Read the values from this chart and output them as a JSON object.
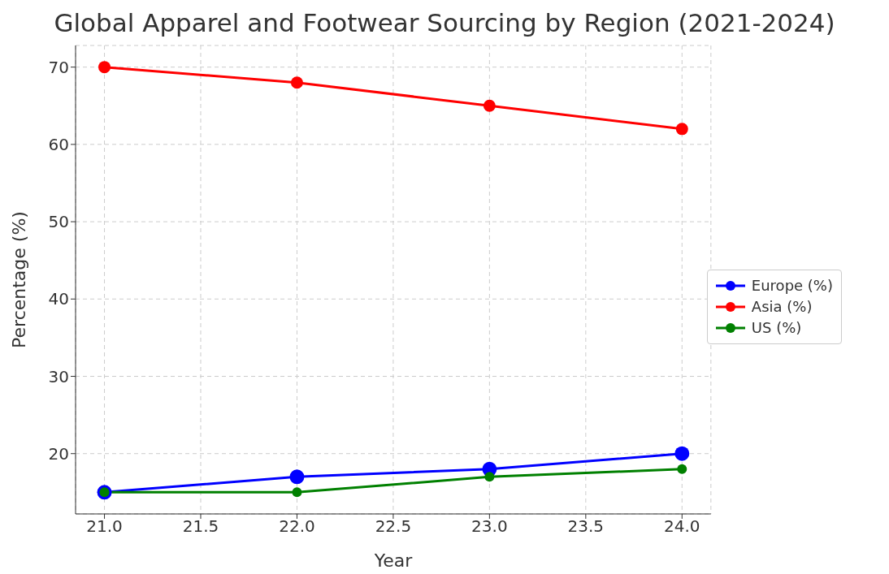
{
  "chart_data": {
    "type": "line",
    "title": "Global Apparel and Footwear Sourcing by Region (2021-2024)",
    "xlabel": "Year",
    "ylabel": "Percentage (%)",
    "x": [
      21,
      22,
      23,
      24
    ],
    "series": [
      {
        "name": "Europe (%)",
        "color": "#0000ff",
        "values": [
          15,
          17,
          18,
          20
        ]
      },
      {
        "name": "Asia (%)",
        "color": "#ff0000",
        "values": [
          70,
          68,
          65,
          62
        ]
      },
      {
        "name": "US (%)",
        "color": "#008000",
        "values": [
          15,
          15,
          17,
          18
        ]
      }
    ],
    "xlim": [
      20.85,
      24.15
    ],
    "ylim": [
      12.2,
      72.8
    ],
    "xticks": [
      {
        "value": 21,
        "label": "21.0"
      },
      {
        "value": 21.5,
        "label": "21.5"
      },
      {
        "value": 22,
        "label": "22.0"
      },
      {
        "value": 22.5,
        "label": "22.5"
      },
      {
        "value": 23,
        "label": "23.0"
      },
      {
        "value": 23.5,
        "label": "23.5"
      },
      {
        "value": 24,
        "label": "24.0"
      }
    ],
    "yticks": [
      20,
      30,
      40,
      50,
      60,
      70
    ],
    "grid": true,
    "legend": "right",
    "marker": "circle",
    "line_style": "solid"
  }
}
